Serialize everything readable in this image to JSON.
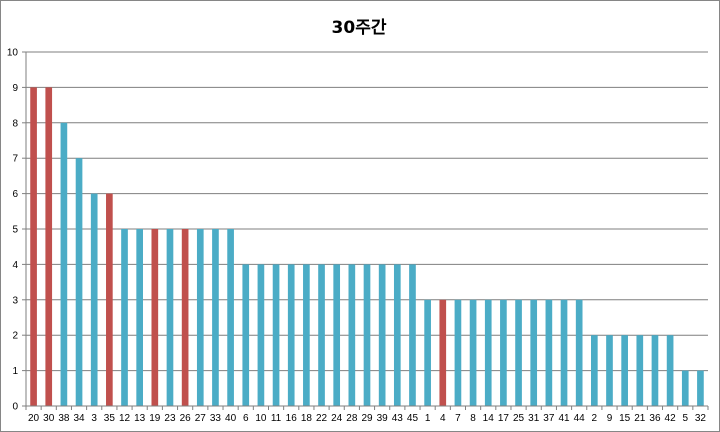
{
  "chart_data": {
    "type": "bar",
    "title": "30주간",
    "xlabel": "",
    "ylabel": "",
    "ylim": [
      0,
      10
    ],
    "yticks": [
      0,
      1,
      2,
      3,
      4,
      5,
      6,
      7,
      8,
      9,
      10
    ],
    "grid": true,
    "categories": [
      "20",
      "30",
      "38",
      "34",
      "3",
      "35",
      "12",
      "13",
      "19",
      "23",
      "26",
      "27",
      "33",
      "40",
      "6",
      "10",
      "11",
      "16",
      "18",
      "22",
      "24",
      "28",
      "29",
      "39",
      "43",
      "45",
      "1",
      "4",
      "7",
      "8",
      "14",
      "17",
      "25",
      "31",
      "37",
      "41",
      "44",
      "2",
      "9",
      "15",
      "21",
      "36",
      "42",
      "5",
      "32"
    ],
    "values": [
      9,
      9,
      8,
      7,
      6,
      6,
      5,
      5,
      5,
      5,
      5,
      5,
      5,
      5,
      4,
      4,
      4,
      4,
      4,
      4,
      4,
      4,
      4,
      4,
      4,
      4,
      3,
      3,
      3,
      3,
      3,
      3,
      3,
      3,
      3,
      3,
      3,
      2,
      2,
      2,
      2,
      2,
      2,
      1,
      1
    ],
    "highlighted": [
      "20",
      "30",
      "35",
      "19",
      "26",
      "4"
    ],
    "colors": {
      "default": "#4bacc6",
      "highlight": "#c0504d",
      "grid": "#7f7f7f",
      "axis": "#7f7f7f"
    }
  }
}
